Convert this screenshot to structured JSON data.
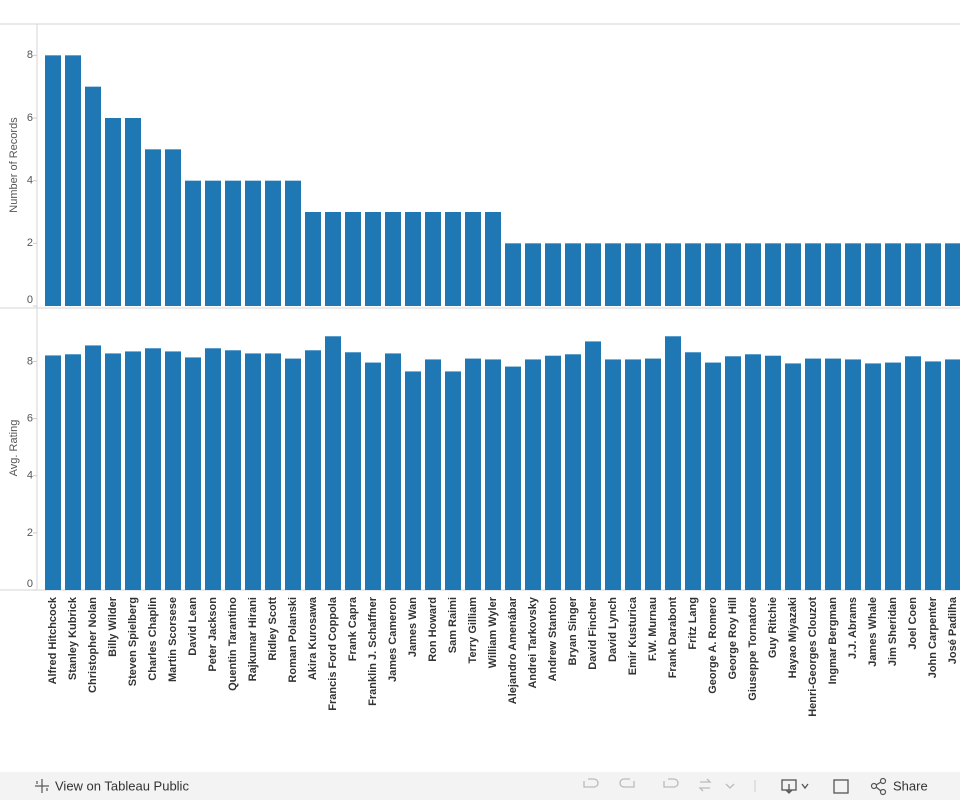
{
  "chart_data": [
    {
      "type": "bar",
      "y_label": "Number of Records",
      "color": "#1f77b4",
      "categories": [
        "Alfred Hitchcock",
        "Stanley Kubrick",
        "Christopher Nolan",
        "Billy Wilder",
        "Steven Spielberg",
        "Charles Chaplin",
        "Martin Scorsese",
        "David Lean",
        "Peter Jackson",
        "Quentin Tarantino",
        "Rajkumar Hirani",
        "Ridley Scott",
        "Roman Polanski",
        "Akira Kurosawa",
        "Francis Ford Coppola",
        "Frank Capra",
        "Franklin J. Schaffner",
        "James Cameron",
        "James Wan",
        "Ron Howard",
        "Sam Raimi",
        "Terry Gilliam",
        "William Wyler",
        "Alejandro Amenábar",
        "Andrei Tarkovsky",
        "Andrew Stanton",
        "Bryan Singer",
        "David Fincher",
        "David Lynch",
        "Emir Kusturica",
        "F.W. Murnau",
        "Frank Darabont",
        "Fritz Lang",
        "George A. Romero",
        "George Roy Hill",
        "Giuseppe Tornatore",
        "Guy Ritchie",
        "Hayao Miyazaki",
        "Henri-Georges Clouzot",
        "Ingmar Bergman",
        "J.J. Abrams",
        "James Whale",
        "Jim Sheridan",
        "Joel Coen",
        "John Carpenter",
        "José Padilha"
      ],
      "values": [
        8,
        8,
        7,
        6,
        6,
        5,
        5,
        4,
        4,
        4,
        4,
        4,
        4,
        3,
        3,
        3,
        3,
        3,
        3,
        3,
        3,
        3,
        3,
        2,
        2,
        2,
        2,
        2,
        2,
        2,
        2,
        2,
        2,
        2,
        2,
        2,
        2,
        2,
        2,
        2,
        2,
        2,
        2,
        2,
        2,
        2
      ],
      "ylim": [
        0,
        9
      ],
      "yticks": [
        0,
        2,
        4,
        6,
        8
      ]
    },
    {
      "type": "bar",
      "y_label": "Avg. Rating",
      "color": "#1f77b4",
      "values": [
        8.21,
        8.25,
        8.56,
        8.28,
        8.35,
        8.46,
        8.35,
        8.14,
        8.46,
        8.39,
        8.28,
        8.28,
        8.1,
        8.39,
        8.88,
        8.32,
        7.96,
        8.28,
        7.65,
        8.07,
        7.65,
        8.1,
        8.07,
        7.82,
        8.07,
        8.2,
        8.25,
        8.7,
        8.07,
        8.07,
        8.1,
        8.88,
        8.32,
        7.96,
        8.18,
        8.25,
        8.2,
        7.93,
        8.1,
        8.1,
        8.07,
        7.93,
        7.96,
        8.18,
        8.0,
        8.07
      ],
      "ylim": [
        0,
        9.8
      ],
      "yticks": [
        0,
        2,
        4,
        6,
        8
      ]
    }
  ],
  "toolbar": {
    "view_link": "View on Tableau Public",
    "share": "Share"
  }
}
